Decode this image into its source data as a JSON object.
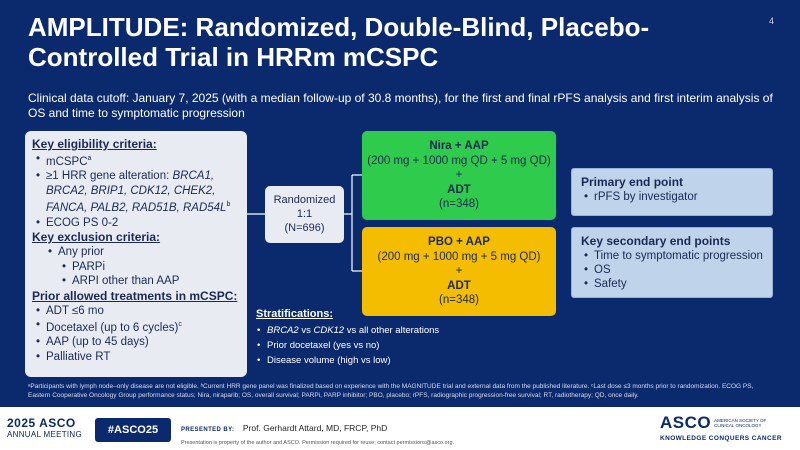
{
  "slide": {
    "title": "AMPLITUDE: Randomized, Double-Blind, Placebo-Controlled Trial in HRRm mCSPC",
    "page_number": "4",
    "cutoff": "Clinical data cutoff: January 7, 2025 (with a median follow-up of 30.8 months), for the first and final rPFS analysis and first interim analysis of OS and time to symptomatic progression"
  },
  "eligibility": {
    "inclusion_heading": "Key eligibility criteria:",
    "mcspc": "mCSPC",
    "mcspc_sup": "a",
    "hrr_intro": "≥1 HRR gene alteration: ",
    "hrr_genes": "BRCA1, BRCA2, BRIP1, CDK12, CHEK2, FANCA, PALB2, RAD51B, RAD54L",
    "hrr_sup": "b",
    "ecog": "ECOG PS 0-2",
    "exclusion_heading": "Key exclusion criteria:",
    "any_prior": "Any prior",
    "parpi": "PARPi",
    "arpi": "ARPI other than AAP",
    "prior_heading": "Prior allowed treatments in mCSPC:",
    "adt": "ADT ≤6 mo",
    "docetaxel": "Docetaxel (up to 6 cycles)",
    "docetaxel_sup": "c",
    "aap": "AAP (up to 45 days)",
    "rt": "Palliative RT"
  },
  "randomization": {
    "label": "Randomized",
    "ratio": "1:1",
    "n": "(N=696)"
  },
  "arms": [
    {
      "name": "Nira + AAP",
      "dose": "(200 mg + 1000 mg QD + 5 mg QD)",
      "plus": "+",
      "adt": "ADT",
      "n": "(n=348)",
      "color": "#2fcb4c"
    },
    {
      "name": "PBO + AAP",
      "dose": "(200 mg + 1000 mg + 5 mg QD)",
      "plus": "+",
      "adt": "ADT",
      "n": "(n=348)",
      "color": "#f5bd00"
    }
  ],
  "primary_endpoint": {
    "heading": "Primary end point",
    "items": [
      "rPFS by investigator"
    ]
  },
  "secondary_endpoints": {
    "heading": "Key secondary end points",
    "items": [
      "Time to symptomatic progression",
      "OS",
      "Safety"
    ]
  },
  "stratifications": {
    "heading": "Stratifications:",
    "brca2": "BRCA2",
    "vs": " vs ",
    "cdk12": "CDK12",
    "rest": " vs all other alterations",
    "item2": "Prior docetaxel (yes vs no)",
    "item3": "Disease volume (high vs low)"
  },
  "footnote": "ᵃParticipants with lymph node–only disease are not eligible. ᵇCurrent HRR gene panel was finalized based on experience with the MAGNITUDE trial and external data from the published literature. ᶜLast dose ≤3 months prior to randomization. ECOG PS, Eastern Cooperative Oncology Group performance status; Nira, niraparib; OS, overall survival; PARPi, PARP inhibitor; PBO, placebo; rPFS, radiographic progression-free survival; RT, radiotherapy; QD, once daily.",
  "footer": {
    "meeting_year": "2025 ASCO",
    "meeting_name": "ANNUAL MEETING",
    "hashtag": "#ASCO25",
    "presented_by": "PRESENTED BY:",
    "presenter": "Prof. Gerhardt Attard, MD, FRCP, PhD",
    "property_note": "Presentation is property of the author and ASCO. Permission required for reuse; contact permissions@asco.org.",
    "asco_logo": "ASCO",
    "asco_society": "AMERICAN SOCIETY OF CLINICAL ONCOLOGY",
    "asco_tagline": "KNOWLEDGE CONQUERS CANCER"
  },
  "colors": {
    "background": "#0b2a6e",
    "arm1": "#2fcb4c",
    "arm2": "#f5bd00",
    "endpoint_box": "#bfd3ea"
  }
}
